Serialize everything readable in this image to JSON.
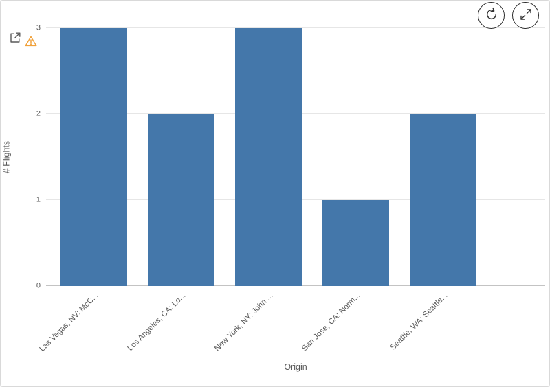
{
  "widget": {
    "kind": "bar-chart-panel"
  },
  "toolbar": {
    "reload_button": "reload-icon",
    "expand_button": "expand-icon"
  },
  "status": {
    "export_icon": "export-icon",
    "warning_icon": "warning-icon"
  },
  "chart_data": {
    "type": "bar",
    "title": "",
    "categories": [
      "Las Vegas, NV: McC...",
      "Los Angeles, CA: Lo...",
      "New York, NY: John ...",
      "San Jose, CA: Norm...",
      "Seattle, WA: Seattle..."
    ],
    "values": [
      3,
      2,
      3,
      1,
      2
    ],
    "xlabel": "Origin",
    "ylabel": "# Flights",
    "ylim": [
      0,
      3
    ],
    "yticks": [
      0,
      1,
      2,
      3
    ],
    "grid": true,
    "legend": false,
    "bar_color": "#4477aa"
  },
  "colors": {
    "bar": "#4477aa",
    "axis_text": "#595959",
    "gridline": "#e6e6e6",
    "axis_line": "#c3c3c3",
    "warning": "#f0a13a",
    "icon_grey": "#595959",
    "button_border": "#2b2b2b"
  }
}
